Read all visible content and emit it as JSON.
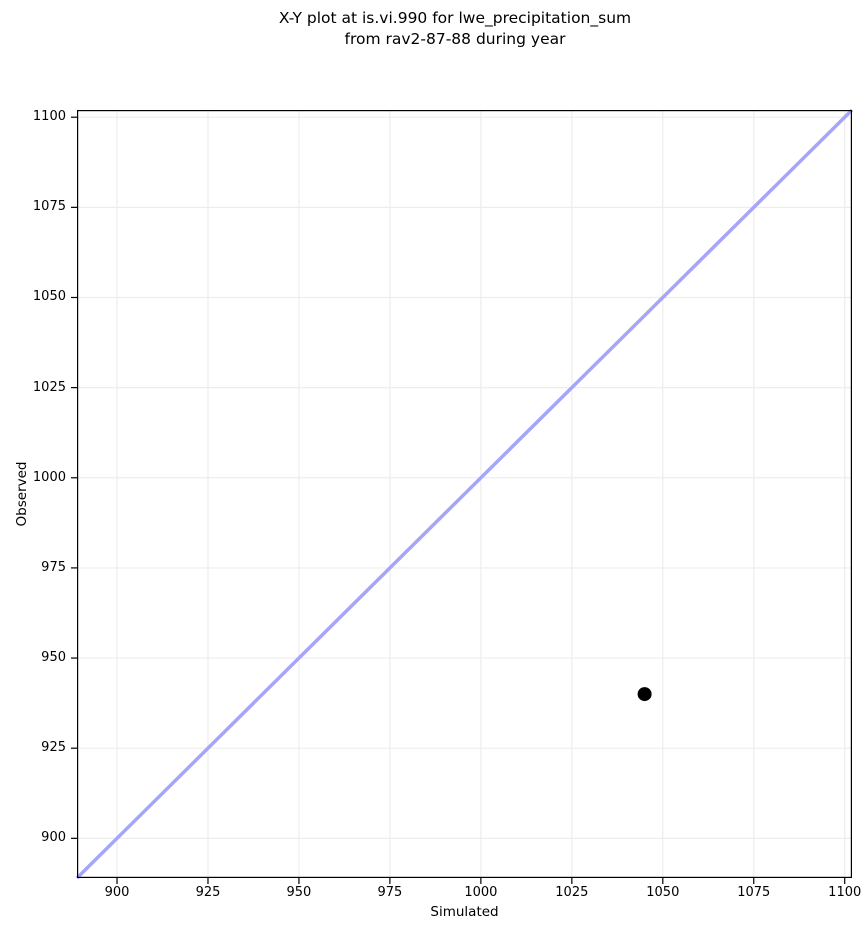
{
  "figure": {
    "background": "#ffffff"
  },
  "chart_data": {
    "type": "scatter",
    "title": "X-Y plot at is.vi.990 for lwe_precipitation_sum\nfrom rav2-87-88 during year",
    "xlabel": "Simulated",
    "ylabel": "Observed",
    "xlim": [
      889,
      1102
    ],
    "ylim": [
      889,
      1102
    ],
    "xticks": [
      900,
      925,
      950,
      975,
      1000,
      1025,
      1050,
      1075,
      1100
    ],
    "yticks": [
      900,
      925,
      950,
      975,
      1000,
      1025,
      1050,
      1075,
      1100
    ],
    "grid": true,
    "legend": "none",
    "series": [
      {
        "name": "identity-line",
        "type": "line",
        "x": [
          889,
          1102
        ],
        "y": [
          889,
          1102
        ],
        "color": "#a5a6f9",
        "line_width": 3.5
      },
      {
        "name": "observation-point",
        "type": "scatter",
        "points": [
          {
            "x": 1045,
            "y": 940
          }
        ],
        "color": "#000000",
        "marker_radius": 7
      }
    ],
    "colors": {
      "grid": "#ededed",
      "spine": "#000000",
      "text": "#000000",
      "background": "#ffffff"
    }
  }
}
